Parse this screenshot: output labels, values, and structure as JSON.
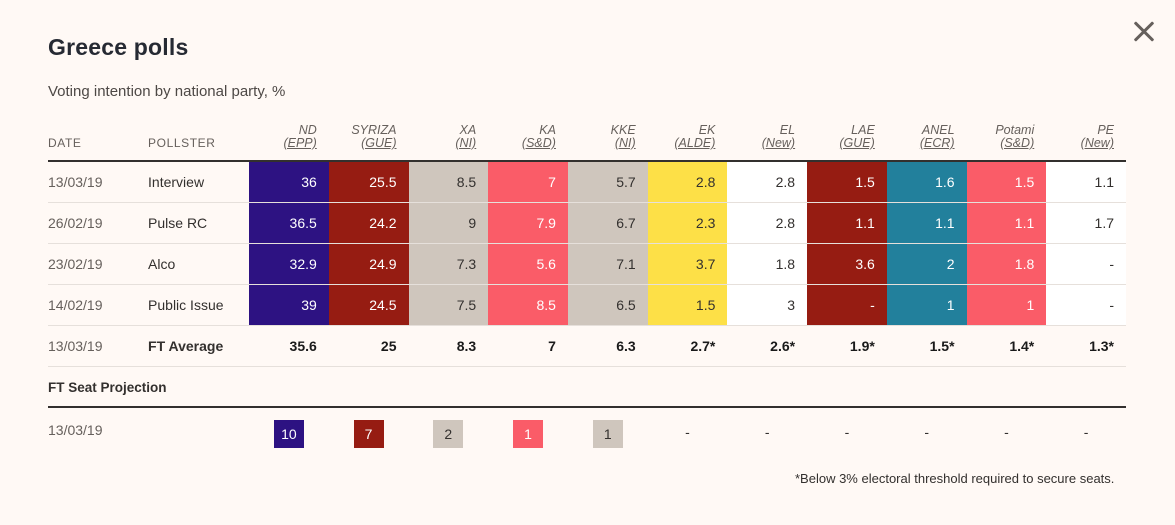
{
  "header": {
    "title": "Greece polls",
    "subtitle": "Voting intention by national party, %",
    "close_icon": "close-icon"
  },
  "columns": {
    "date": "DATE",
    "pollster": "POLLSTER",
    "parties": [
      {
        "name": "ND",
        "affiliation": "(EPP)",
        "color": "#2d1282",
        "text_dark": false
      },
      {
        "name": "SYRIZA",
        "affiliation": "(GUE)",
        "color": "#961c12",
        "text_dark": false
      },
      {
        "name": "XA",
        "affiliation": "(NI)",
        "color": "#cfc6bd",
        "text_dark": true
      },
      {
        "name": "KA",
        "affiliation": "(S&D)",
        "color": "#fa5c68",
        "text_dark": false
      },
      {
        "name": "KKE",
        "affiliation": "(NI)",
        "color": "#cfc6bd",
        "text_dark": true
      },
      {
        "name": "EK",
        "affiliation": "(ALDE)",
        "color": "#fde047",
        "text_dark": true
      },
      {
        "name": "EL",
        "affiliation": "(New)",
        "color": "#ffffff",
        "text_dark": true
      },
      {
        "name": "LAE",
        "affiliation": "(GUE)",
        "color": "#961c12",
        "text_dark": false
      },
      {
        "name": "ANEL",
        "affiliation": "(ECR)",
        "color": "#22809c",
        "text_dark": false
      },
      {
        "name": "Potami",
        "affiliation": "(S&D)",
        "color": "#fa5c68",
        "text_dark": false
      },
      {
        "name": "PE",
        "affiliation": "(New)",
        "color": "#ffffff",
        "text_dark": true
      }
    ]
  },
  "polls": [
    {
      "date": "13/03/19",
      "pollster": "Interview",
      "values": [
        "36",
        "25.5",
        "8.5",
        "7",
        "5.7",
        "2.8",
        "2.8",
        "1.5",
        "1.6",
        "1.5",
        "1.1"
      ]
    },
    {
      "date": "26/02/19",
      "pollster": "Pulse RC",
      "values": [
        "36.5",
        "24.2",
        "9",
        "7.9",
        "6.7",
        "2.3",
        "2.8",
        "1.1",
        "1.1",
        "1.1",
        "1.7"
      ]
    },
    {
      "date": "23/02/19",
      "pollster": "Alco",
      "values": [
        "32.9",
        "24.9",
        "7.3",
        "5.6",
        "7.1",
        "3.7",
        "1.8",
        "3.6",
        "2",
        "1.8",
        "-"
      ]
    },
    {
      "date": "14/02/19",
      "pollster": "Public Issue",
      "values": [
        "39",
        "24.5",
        "7.5",
        "8.5",
        "6.5",
        "1.5",
        "3",
        "-",
        "1",
        "1",
        "-"
      ]
    }
  ],
  "average": {
    "date": "13/03/19",
    "label": "FT Average",
    "values": [
      "35.6",
      "25",
      "8.3",
      "7",
      "6.3",
      "2.7*",
      "2.6*",
      "1.9*",
      "1.5*",
      "1.4*",
      "1.3*"
    ]
  },
  "seats": {
    "title": "FT Seat Projection",
    "date": "13/03/19",
    "values": [
      "10",
      "7",
      "2",
      "1",
      "1",
      "-",
      "-",
      "-",
      "-",
      "-",
      "-"
    ]
  },
  "footnote": "*Below 3% electoral threshold required to secure seats."
}
